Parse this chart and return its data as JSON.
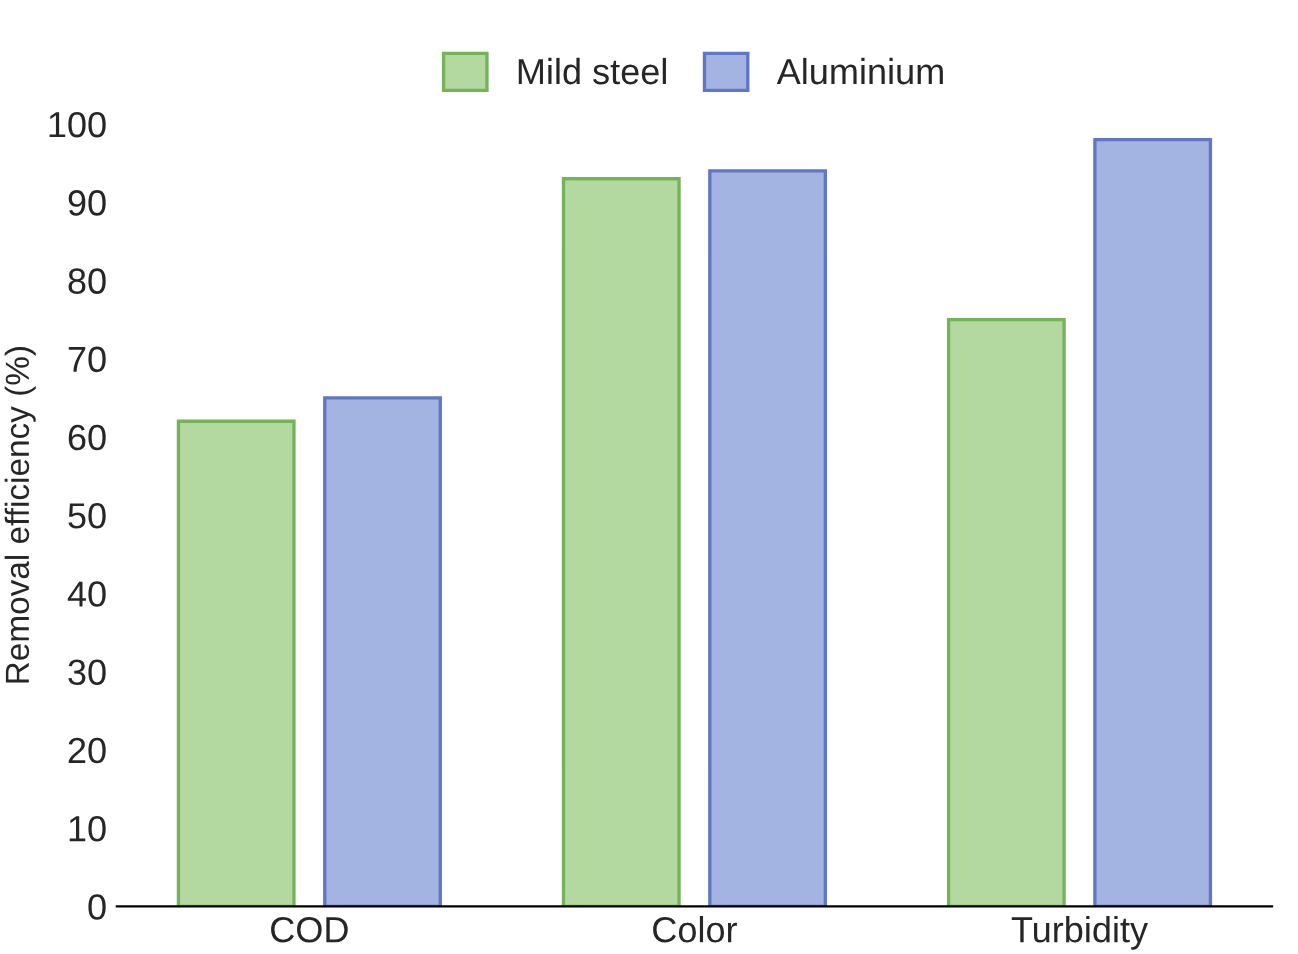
{
  "chart_data": {
    "type": "bar",
    "ylabel": "Removal efficiency (%)",
    "categories": [
      "COD",
      "Color",
      "Turbidity"
    ],
    "series": [
      {
        "name": "Mild steel",
        "color": "#b3d9a0",
        "values": [
          62,
          93,
          75
        ]
      },
      {
        "name": "Aluminium",
        "color": "#a3b4e2",
        "values": [
          65,
          94,
          98
        ]
      }
    ],
    "ylim": [
      0,
      100
    ],
    "yticks": [
      0,
      10,
      20,
      30,
      40,
      50,
      60,
      70,
      80,
      90,
      100
    ],
    "grid": false,
    "legend": "top"
  }
}
